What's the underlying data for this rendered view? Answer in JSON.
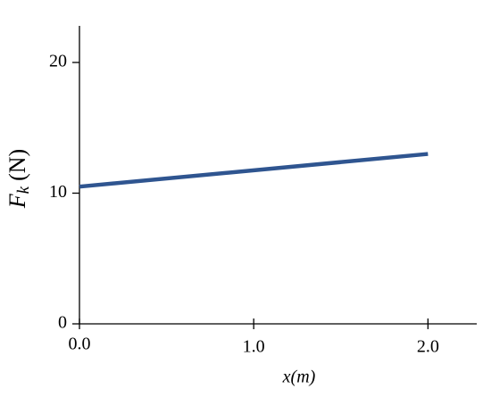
{
  "chart_data": {
    "type": "line",
    "ylabel": {
      "symbol": "F",
      "subscript": "k",
      "unit": "(N)"
    },
    "xlabel": "x(m)",
    "x": [
      0,
      2
    ],
    "series": [
      {
        "color": "#2f5590",
        "values": [
          10.5,
          13
        ]
      }
    ],
    "xlim": [
      0,
      2.28
    ],
    "ylim": [
      0,
      22.8
    ],
    "xticks": [
      {
        "value": 0,
        "label": "0.0"
      },
      {
        "value": 1,
        "label": "1.0"
      },
      {
        "value": 2,
        "label": "2.0"
      }
    ],
    "yticks": [
      0,
      10,
      20
    ],
    "grid": false
  }
}
